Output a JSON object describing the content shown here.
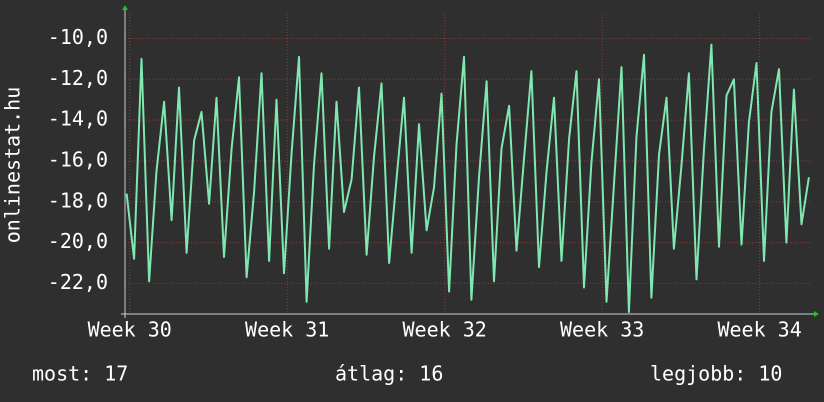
{
  "chart_data": {
    "type": "line",
    "y_label": "onlinestat.hu",
    "footer": [
      "most: 17",
      "átlag: 16",
      "legjobb: 10"
    ],
    "xlim": [
      29.97,
      34.32
    ],
    "xticks": [
      {
        "value": 30,
        "label": "Week 30"
      },
      {
        "value": 31,
        "label": "Week 31"
      },
      {
        "value": 32,
        "label": "Week 32"
      },
      {
        "value": 33,
        "label": "Week 33"
      },
      {
        "value": 34,
        "label": "Week 34"
      }
    ],
    "ylim": [
      -23.5,
      -8.8
    ],
    "yticks": [
      {
        "value": -10,
        "label": "-10,0"
      },
      {
        "value": -12,
        "label": "-12,0"
      },
      {
        "value": -14,
        "label": "-14,0"
      },
      {
        "value": -16,
        "label": "-16,0"
      },
      {
        "value": -18,
        "label": "-18,0"
      },
      {
        "value": -20,
        "label": "-20,0"
      },
      {
        "value": -22,
        "label": "-22,0"
      }
    ],
    "grid": true,
    "x": [
      29.98,
      30.028,
      30.075,
      30.123,
      30.17,
      30.218,
      30.266,
      30.313,
      30.361,
      30.409,
      30.456,
      30.504,
      30.551,
      30.599,
      30.647,
      30.694,
      30.742,
      30.79,
      30.837,
      30.885,
      30.932,
      30.98,
      31.028,
      31.075,
      31.123,
      31.17,
      31.218,
      31.266,
      31.313,
      31.361,
      31.409,
      31.456,
      31.504,
      31.551,
      31.599,
      31.647,
      31.694,
      31.742,
      31.79,
      31.837,
      31.885,
      31.932,
      31.98,
      32.028,
      32.075,
      32.123,
      32.17,
      32.218,
      32.266,
      32.313,
      32.361,
      32.409,
      32.456,
      32.504,
      32.551,
      32.599,
      32.647,
      32.694,
      32.742,
      32.79,
      32.837,
      32.885,
      32.932,
      32.98,
      33.028,
      33.075,
      33.123,
      33.17,
      33.218,
      33.266,
      33.313,
      33.361,
      33.409,
      33.456,
      33.504,
      33.551,
      33.599,
      33.647,
      33.694,
      33.742,
      33.79,
      33.837,
      33.885,
      33.932,
      33.98,
      34.028,
      34.075,
      34.123,
      34.17,
      34.218,
      34.266,
      34.313
    ],
    "series": [
      {
        "name": "onlinestat.hu",
        "color": "#7fe8b0",
        "values": [
          -17.6,
          -20.8,
          -11.0,
          -21.9,
          -16.5,
          -13.1,
          -18.9,
          -12.4,
          -20.5,
          -15.0,
          -13.6,
          -18.1,
          -12.9,
          -20.7,
          -15.4,
          -11.9,
          -21.7,
          -17.5,
          -11.7,
          -20.9,
          -13.0,
          -21.5,
          -15.6,
          -10.9,
          -22.9,
          -16.2,
          -11.7,
          -20.3,
          -13.1,
          -18.5,
          -16.9,
          -12.4,
          -20.6,
          -15.8,
          -12.2,
          -21.0,
          -16.9,
          -12.9,
          -20.5,
          -14.2,
          -19.4,
          -17.3,
          -12.7,
          -22.4,
          -15.2,
          -10.9,
          -22.8,
          -16.8,
          -12.1,
          -21.9,
          -15.4,
          -13.3,
          -20.4,
          -15.9,
          -11.6,
          -21.2,
          -16.5,
          -12.9,
          -20.9,
          -14.9,
          -11.6,
          -22.2,
          -16.1,
          -12.0,
          -22.9,
          -17.2,
          -11.4,
          -23.4,
          -14.8,
          -10.8,
          -22.7,
          -15.7,
          -12.9,
          -20.3,
          -16.2,
          -11.7,
          -21.8,
          -15.4,
          -10.3,
          -20.2,
          -12.8,
          -12.0,
          -20.1,
          -14.1,
          -11.2,
          -20.9,
          -13.6,
          -11.5,
          -20.0,
          -12.5,
          -19.1,
          -16.8
        ]
      }
    ]
  }
}
